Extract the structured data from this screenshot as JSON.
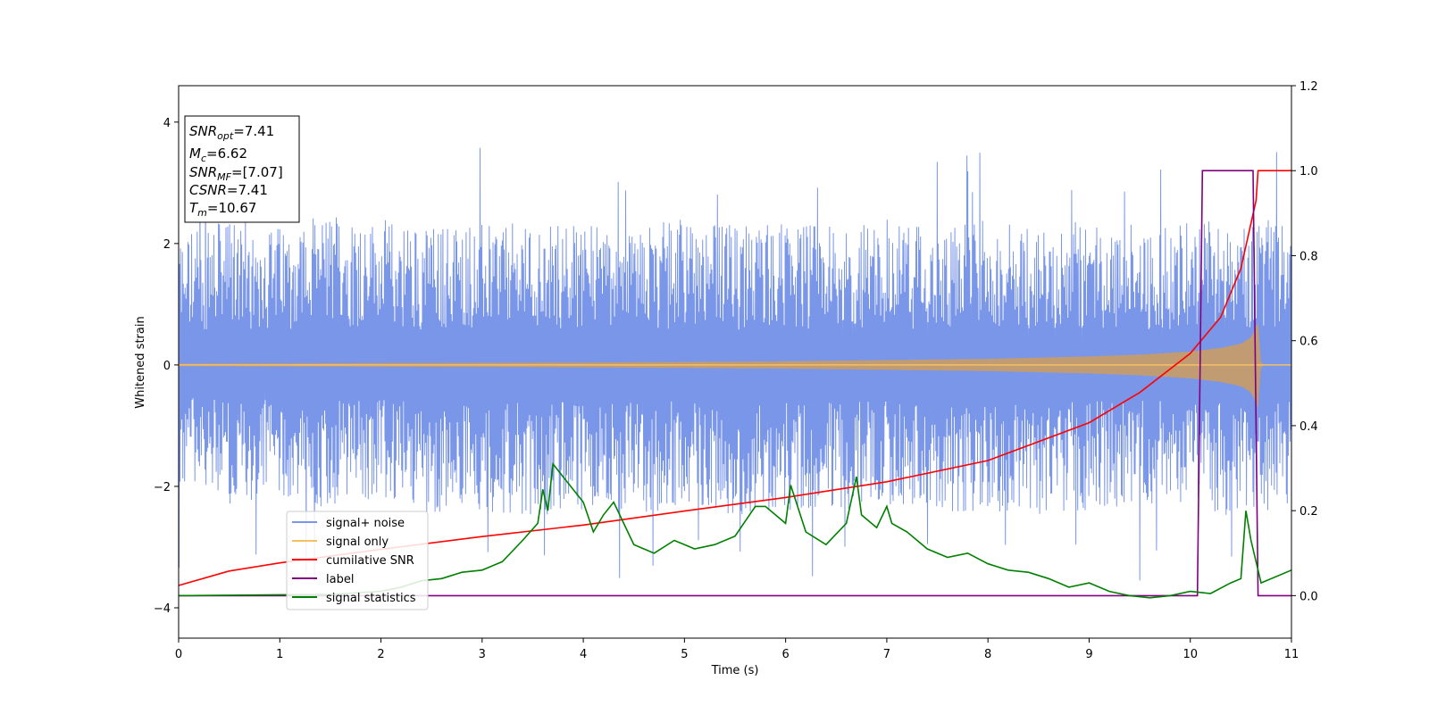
{
  "chart_data": {
    "type": "line",
    "xlabel": "Time (s)",
    "ylabel": "Whitened strain",
    "xlim": [
      0,
      11
    ],
    "ylim": [
      -4.5,
      4.6
    ],
    "y2lim": [
      -0.1,
      1.2
    ],
    "x_ticks": [
      "0",
      "1",
      "2",
      "3",
      "4",
      "5",
      "6",
      "7",
      "8",
      "9",
      "10",
      "11"
    ],
    "y_ticks": [
      "−4",
      "−2",
      "0",
      "2",
      "4"
    ],
    "y2_ticks": [
      "0.0",
      "0.2",
      "0.4",
      "0.6",
      "0.8",
      "1.0",
      "1.2"
    ],
    "grid": false,
    "legend_placement": "lower-left",
    "annotation": {
      "snr_opt": {
        "main": "SNR",
        "sub": "opt",
        "value": "=7.41"
      },
      "mc": {
        "main": "M",
        "sub": "c",
        "value": "=6.62"
      },
      "snr_mf": {
        "main": "SNR",
        "sub": "MF",
        "value": "=[7.07]"
      },
      "csnr": {
        "main": "CSNR",
        "sub": "",
        "value": "=7.41"
      },
      "tm": {
        "main": "T",
        "sub": "m",
        "value": "=10.67"
      }
    },
    "series": [
      {
        "name": "signal+ noise",
        "color": "#7a96e8",
        "axis": "left",
        "envelope_x": [
          0,
          0.5,
          1,
          1.5,
          2,
          2.5,
          3,
          3.5,
          4,
          4.5,
          5,
          5.5,
          6,
          6.5,
          7,
          7.5,
          8,
          8.5,
          9,
          9.5,
          10,
          10.5,
          11
        ],
        "envelope_upper": [
          2.2,
          2.4,
          2.3,
          2.5,
          2.4,
          2.3,
          2.4,
          2.3,
          2.4,
          2.3,
          2.4,
          2.3,
          2.4,
          2.3,
          2.4,
          2.3,
          2.4,
          2.3,
          2.4,
          2.3,
          2.4,
          2.5,
          2.3
        ],
        "envelope_lower": [
          -2.1,
          -2.3,
          -2.2,
          -2.4,
          -2.2,
          -2.5,
          -2.4,
          -2.5,
          -2.4,
          -2.5,
          -2.3,
          -2.5,
          -2.4,
          -2.4,
          -2.3,
          -2.5,
          -2.4,
          -2.5,
          -2.4,
          -2.3,
          -2.4,
          -2.5,
          -2.3
        ]
      },
      {
        "name": "signal only",
        "color": "#f5c065",
        "axis": "left",
        "x": [
          0,
          1,
          2,
          3,
          4,
          5,
          6,
          7,
          8,
          9,
          9.5,
          10,
          10.3,
          10.5,
          10.6,
          10.67,
          10.7,
          11
        ],
        "amplitude": [
          0.02,
          0.025,
          0.03,
          0.035,
          0.04,
          0.05,
          0.06,
          0.08,
          0.1,
          0.14,
          0.17,
          0.22,
          0.28,
          0.35,
          0.45,
          0.7,
          0.0,
          0.0
        ]
      },
      {
        "name": "cumilative SNR",
        "color": "#ff0000",
        "axis": "right",
        "x": [
          0,
          0.5,
          1,
          2,
          3,
          4,
          5,
          6,
          7,
          8,
          9,
          9.5,
          10,
          10.3,
          10.5,
          10.65,
          10.67,
          11
        ],
        "values": [
          0.024,
          0.058,
          0.077,
          0.109,
          0.139,
          0.166,
          0.199,
          0.231,
          0.268,
          0.318,
          0.407,
          0.478,
          0.57,
          0.655,
          0.77,
          0.93,
          1.0,
          1.0
        ]
      },
      {
        "name": "label",
        "color": "#800080",
        "axis": "right",
        "x": [
          0,
          10.07,
          10.12,
          10.62,
          10.67,
          11
        ],
        "values": [
          0,
          0,
          1,
          1,
          0,
          0
        ]
      },
      {
        "name": "signal statistics",
        "color": "#008000",
        "axis": "right",
        "x": [
          0,
          0.5,
          1,
          1.5,
          2,
          2.2,
          2.4,
          2.6,
          2.8,
          3.0,
          3.2,
          3.4,
          3.55,
          3.6,
          3.65,
          3.7,
          3.8,
          4.0,
          4.1,
          4.2,
          4.3,
          4.5,
          4.7,
          4.9,
          5.1,
          5.3,
          5.5,
          5.7,
          5.8,
          6.0,
          6.05,
          6.2,
          6.4,
          6.6,
          6.7,
          6.75,
          6.9,
          7.0,
          7.05,
          7.2,
          7.4,
          7.6,
          7.8,
          8.0,
          8.2,
          8.4,
          8.6,
          8.8,
          9.0,
          9.2,
          9.4,
          9.6,
          9.8,
          10.0,
          10.2,
          10.4,
          10.5,
          10.55,
          10.6,
          10.7,
          11
        ],
        "values": [
          0.0,
          0.001,
          0.002,
          0.003,
          0.01,
          0.02,
          0.035,
          0.04,
          0.055,
          0.06,
          0.08,
          0.13,
          0.17,
          0.25,
          0.2,
          0.31,
          0.28,
          0.22,
          0.15,
          0.19,
          0.22,
          0.12,
          0.1,
          0.13,
          0.11,
          0.12,
          0.14,
          0.21,
          0.21,
          0.17,
          0.26,
          0.15,
          0.12,
          0.17,
          0.28,
          0.19,
          0.16,
          0.21,
          0.17,
          0.15,
          0.11,
          0.09,
          0.1,
          0.075,
          0.06,
          0.055,
          0.04,
          0.02,
          0.03,
          0.01,
          0.0,
          -0.005,
          0.0,
          0.01,
          0.005,
          0.03,
          0.04,
          0.2,
          0.13,
          0.03,
          0.06
        ]
      }
    ]
  }
}
